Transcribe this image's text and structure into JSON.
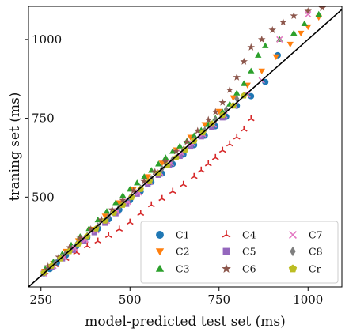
{
  "chart_data": {
    "type": "scatter",
    "title": "",
    "xlabel": "model-predicted test set (ms)",
    "ylabel": "traning set (ms)",
    "xlim": [
      215,
      1095
    ],
    "ylim": [
      215,
      1105
    ],
    "xticks": [
      250,
      500,
      750,
      1000
    ],
    "yticks": [
      500,
      750,
      1000
    ],
    "grid": false,
    "legend_position": "lower-right",
    "reference_line": "y = x",
    "series": [
      {
        "name": "C1",
        "marker": "circle",
        "color": "#1f77b4",
        "points": [
          [
            258,
            258
          ],
          [
            275,
            272
          ],
          [
            295,
            292
          ],
          [
            320,
            315
          ],
          [
            350,
            345
          ],
          [
            380,
            372
          ],
          [
            410,
            400
          ],
          [
            440,
            430
          ],
          [
            470,
            460
          ],
          [
            500,
            490
          ],
          [
            530,
            518
          ],
          [
            560,
            548
          ],
          [
            590,
            575
          ],
          [
            620,
            605
          ],
          [
            650,
            635
          ],
          [
            680,
            665
          ],
          [
            710,
            695
          ],
          [
            740,
            725
          ],
          [
            770,
            755
          ],
          [
            800,
            790
          ],
          [
            840,
            820
          ],
          [
            880,
            865
          ],
          [
            915,
            950
          ]
        ]
      },
      {
        "name": "C2",
        "marker": "triangle-down",
        "color": "#ff7f0e",
        "points": [
          [
            260,
            265
          ],
          [
            285,
            290
          ],
          [
            320,
            328
          ],
          [
            355,
            362
          ],
          [
            390,
            398
          ],
          [
            430,
            440
          ],
          [
            470,
            482
          ],
          [
            510,
            525
          ],
          [
            550,
            565
          ],
          [
            590,
            608
          ],
          [
            630,
            650
          ],
          [
            670,
            690
          ],
          [
            710,
            730
          ],
          [
            750,
            772
          ],
          [
            790,
            815
          ],
          [
            830,
            855
          ],
          [
            870,
            900
          ],
          [
            910,
            945
          ],
          [
            950,
            985
          ],
          [
            980,
            1020
          ],
          [
            1000,
            1040
          ],
          [
            1030,
            1070
          ]
        ]
      },
      {
        "name": "C3",
        "marker": "triangle-up",
        "color": "#2ca02c",
        "points": [
          [
            262,
            272
          ],
          [
            285,
            295
          ],
          [
            310,
            320
          ],
          [
            335,
            348
          ],
          [
            360,
            375
          ],
          [
            385,
            400
          ],
          [
            410,
            428
          ],
          [
            435,
            455
          ],
          [
            460,
            482
          ],
          [
            480,
            505
          ],
          [
            500,
            525
          ],
          [
            520,
            545
          ],
          [
            540,
            565
          ],
          [
            560,
            585
          ],
          [
            580,
            605
          ],
          [
            600,
            625
          ],
          [
            620,
            645
          ],
          [
            640,
            662
          ],
          [
            660,
            678
          ],
          [
            680,
            695
          ],
          [
            700,
            712
          ],
          [
            720,
            730
          ],
          [
            740,
            750
          ],
          [
            760,
            770
          ],
          [
            780,
            795
          ],
          [
            800,
            830
          ],
          [
            820,
            860
          ],
          [
            840,
            900
          ],
          [
            860,
            950
          ],
          [
            880,
            980
          ],
          [
            920,
            1000
          ],
          [
            960,
            1020
          ],
          [
            990,
            1050
          ],
          [
            1030,
            1080
          ]
        ]
      },
      {
        "name": "C4",
        "marker": "tri-down",
        "color": "#d62728",
        "points": [
          [
            262,
            262
          ],
          [
            290,
            285
          ],
          [
            320,
            305
          ],
          [
            350,
            325
          ],
          [
            380,
            345
          ],
          [
            410,
            360
          ],
          [
            440,
            378
          ],
          [
            470,
            398
          ],
          [
            500,
            420
          ],
          [
            530,
            448
          ],
          [
            560,
            475
          ],
          [
            590,
            495
          ],
          [
            620,
            518
          ],
          [
            650,
            540
          ],
          [
            680,
            565
          ],
          [
            700,
            585
          ],
          [
            720,
            605
          ],
          [
            740,
            625
          ],
          [
            760,
            648
          ],
          [
            780,
            668
          ],
          [
            800,
            690
          ],
          [
            820,
            715
          ],
          [
            840,
            748
          ]
        ]
      },
      {
        "name": "C5",
        "marker": "square",
        "color": "#9467bd",
        "points": [
          [
            258,
            258
          ],
          [
            280,
            278
          ],
          [
            310,
            305
          ],
          [
            340,
            332
          ],
          [
            370,
            360
          ],
          [
            400,
            388
          ],
          [
            430,
            418
          ],
          [
            460,
            448
          ],
          [
            490,
            478
          ],
          [
            520,
            510
          ],
          [
            550,
            540
          ],
          [
            580,
            570
          ],
          [
            610,
            600
          ],
          [
            640,
            630
          ],
          [
            670,
            660
          ],
          [
            700,
            692
          ],
          [
            730,
            722
          ],
          [
            760,
            752
          ]
        ]
      },
      {
        "name": "C6",
        "marker": "star",
        "color": "#8c564b",
        "points": [
          [
            270,
            280
          ],
          [
            300,
            310
          ],
          [
            330,
            340
          ],
          [
            360,
            370
          ],
          [
            390,
            398
          ],
          [
            420,
            428
          ],
          [
            450,
            460
          ],
          [
            480,
            490
          ],
          [
            510,
            520
          ],
          [
            540,
            550
          ],
          [
            570,
            580
          ],
          [
            600,
            612
          ],
          [
            630,
            645
          ],
          [
            660,
            675
          ],
          [
            690,
            710
          ],
          [
            720,
            745
          ],
          [
            740,
            770
          ],
          [
            760,
            800
          ],
          [
            780,
            840
          ],
          [
            800,
            880
          ],
          [
            820,
            930
          ],
          [
            840,
            975
          ],
          [
            870,
            1000
          ],
          [
            900,
            1030
          ],
          [
            930,
            1055
          ],
          [
            960,
            1075
          ],
          [
            1000,
            1090
          ],
          [
            1040,
            1100
          ]
        ]
      },
      {
        "name": "C7",
        "marker": "x",
        "color": "#e377c2",
        "points": [
          [
            258,
            258
          ],
          [
            285,
            282
          ],
          [
            315,
            310
          ],
          [
            345,
            338
          ],
          [
            375,
            365
          ],
          [
            405,
            395
          ],
          [
            435,
            425
          ],
          [
            465,
            455
          ],
          [
            495,
            485
          ],
          [
            525,
            515
          ],
          [
            555,
            548
          ],
          [
            585,
            578
          ],
          [
            615,
            608
          ],
          [
            645,
            640
          ],
          [
            675,
            670
          ],
          [
            705,
            700
          ],
          [
            735,
            730
          ],
          [
            765,
            760
          ],
          [
            795,
            790
          ],
          [
            830,
            825
          ],
          [
            870,
            870
          ],
          [
            920,
            1000
          ],
          [
            1000,
            1080
          ]
        ]
      },
      {
        "name": "C8",
        "marker": "thin-diamond",
        "color": "#7f7f7f",
        "points": [
          [
            260,
            262
          ],
          [
            290,
            292
          ],
          [
            320,
            322
          ],
          [
            350,
            350
          ],
          [
            380,
            378
          ],
          [
            410,
            408
          ],
          [
            440,
            438
          ],
          [
            470,
            468
          ],
          [
            500,
            498
          ],
          [
            530,
            528
          ],
          [
            560,
            558
          ],
          [
            590,
            590
          ],
          [
            620,
            620
          ],
          [
            650,
            650
          ],
          [
            680,
            682
          ],
          [
            710,
            712
          ],
          [
            740,
            745
          ],
          [
            770,
            778
          ],
          [
            800,
            812
          ]
        ]
      },
      {
        "name": "Cr",
        "marker": "pentagon",
        "color": "#bcbd22",
        "points": [
          [
            258,
            260
          ],
          [
            280,
            282
          ],
          [
            305,
            305
          ],
          [
            330,
            328
          ],
          [
            355,
            352
          ],
          [
            380,
            376
          ],
          [
            405,
            400
          ],
          [
            430,
            425
          ],
          [
            455,
            450
          ],
          [
            480,
            475
          ],
          [
            505,
            500
          ],
          [
            530,
            525
          ],
          [
            555,
            550
          ],
          [
            580,
            575
          ],
          [
            605,
            600
          ],
          [
            630,
            625
          ],
          [
            655,
            650
          ],
          [
            680,
            678
          ],
          [
            705,
            705
          ],
          [
            730,
            732
          ],
          [
            760,
            760
          ],
          [
            790,
            790
          ],
          [
            820,
            822
          ]
        ]
      }
    ]
  }
}
